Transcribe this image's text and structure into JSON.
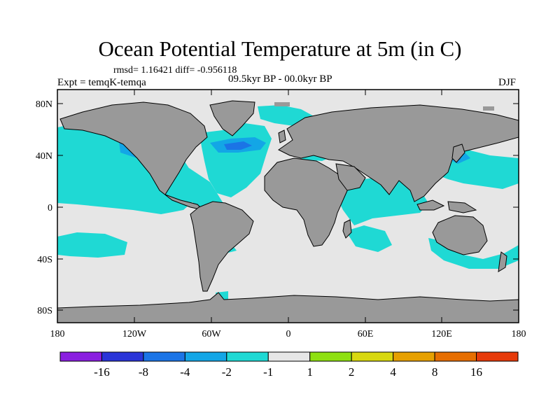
{
  "title": "Ocean Potential Temperature at 5m (in C)",
  "stats_line": "rmsd= 1.16421 diff= -0.956118",
  "experiment": "Expt = temqK-temqa",
  "period": "09.5kyr BP - 00.0kyr BP",
  "season": "DJF",
  "lat_ticks": [
    "80N",
    "40N",
    "0",
    "40S",
    "80S"
  ],
  "lon_ticks": [
    "180",
    "120W",
    "60W",
    "0",
    "60E",
    "120E",
    "180"
  ],
  "colorbar": {
    "labels": [
      "-16",
      "-8",
      "-4",
      "-2",
      "-1",
      "1",
      "2",
      "4",
      "8",
      "16"
    ],
    "colors": [
      "#8a1ee0",
      "#2a35d8",
      "#1b74e6",
      "#13a6e6",
      "#1fd9d4",
      "#e6e6e6",
      "#8ee011",
      "#d8d810",
      "#e6a000",
      "#e66e00",
      "#e63a0a"
    ]
  },
  "colors": {
    "land": "#999999",
    "ocean_neutral": "#e6e6e6",
    "cool_light": "#1fd9d4",
    "cool_mid": "#13a6e6",
    "cool_strong": "#1b74e6"
  }
}
